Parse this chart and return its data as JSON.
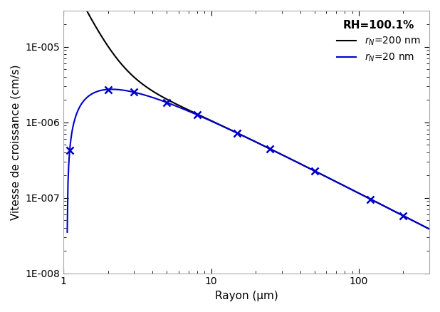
{
  "title": "RH=100.1%",
  "xlabel": "Rayon (μm)",
  "ylabel": "Vitesse de croissance (cm/s)",
  "xlim": [
    1,
    300
  ],
  "ylim": [
    1e-08,
    3e-05
  ],
  "legend_label_blue": "r_N=20 nm",
  "legend_label_black": "r_N=200 nm",
  "blue_color": "#0000CC",
  "black_color": "#000000",
  "background_color": "#ffffff"
}
